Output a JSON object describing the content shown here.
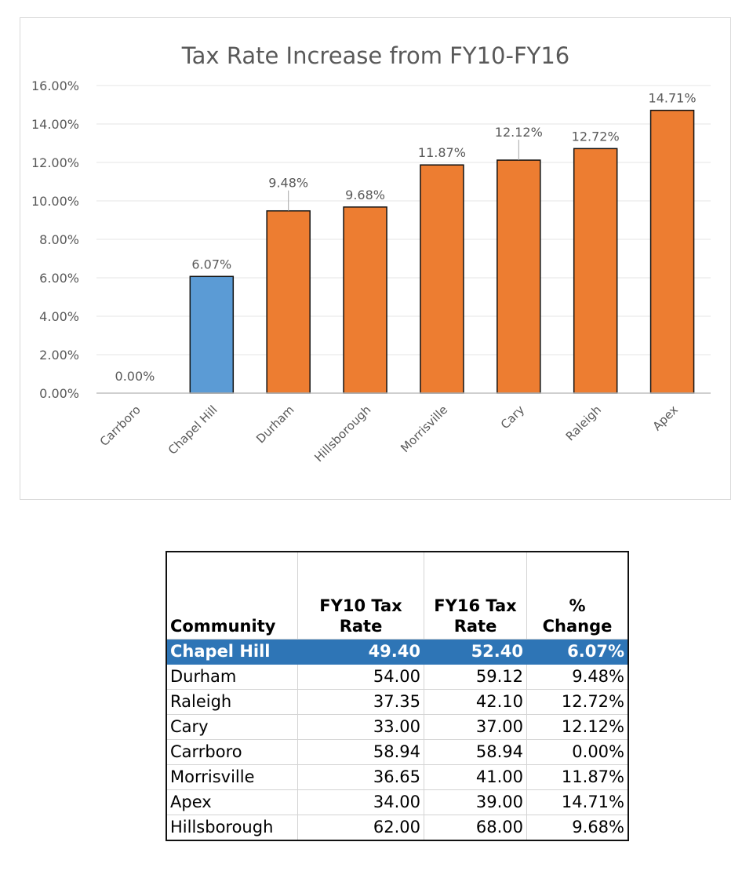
{
  "chart_data": {
    "type": "bar",
    "title": "Tax Rate Increase from FY10-FY16",
    "categories": [
      "Carrboro",
      "Chapel Hill",
      "Durham",
      "Hillsborough",
      "Morrisville",
      "Cary",
      "Raleigh",
      "Apex"
    ],
    "values": [
      0.0,
      6.07,
      9.48,
      9.68,
      11.87,
      12.12,
      12.72,
      14.71
    ],
    "data_labels": [
      "0.00%",
      "6.07%",
      "9.48%",
      "9.68%",
      "11.87%",
      "12.12%",
      "12.72%",
      "14.71%"
    ],
    "highlight_category": "Chapel Hill",
    "ylim": [
      0,
      16
    ],
    "yticks": [
      "0.00%",
      "2.00%",
      "4.00%",
      "6.00%",
      "8.00%",
      "10.00%",
      "12.00%",
      "14.00%",
      "16.00%"
    ],
    "grid": true,
    "colors": {
      "default": "#ed7d31",
      "highlight": "#5b9bd5",
      "outline": "#111111"
    }
  },
  "table": {
    "headers": [
      "Community",
      "FY10 Tax\nRate",
      "FY16 Tax\nRate",
      "%\nChange"
    ],
    "rows": [
      [
        "Chapel Hill",
        "49.40",
        "52.40",
        "6.07%"
      ],
      [
        "Durham",
        "54.00",
        "59.12",
        "9.48%"
      ],
      [
        "Raleigh",
        "37.35",
        "42.10",
        "12.72%"
      ],
      [
        "Cary",
        "33.00",
        "37.00",
        "12.12%"
      ],
      [
        "Carrboro",
        "58.94",
        "58.94",
        "0.00%"
      ],
      [
        "Morrisville",
        "36.65",
        "41.00",
        "11.87%"
      ],
      [
        "Apex",
        "34.00",
        "39.00",
        "14.71%"
      ],
      [
        "Hillsborough",
        "62.00",
        "68.00",
        "9.68%"
      ]
    ],
    "highlight_color": "#2e75b6"
  }
}
